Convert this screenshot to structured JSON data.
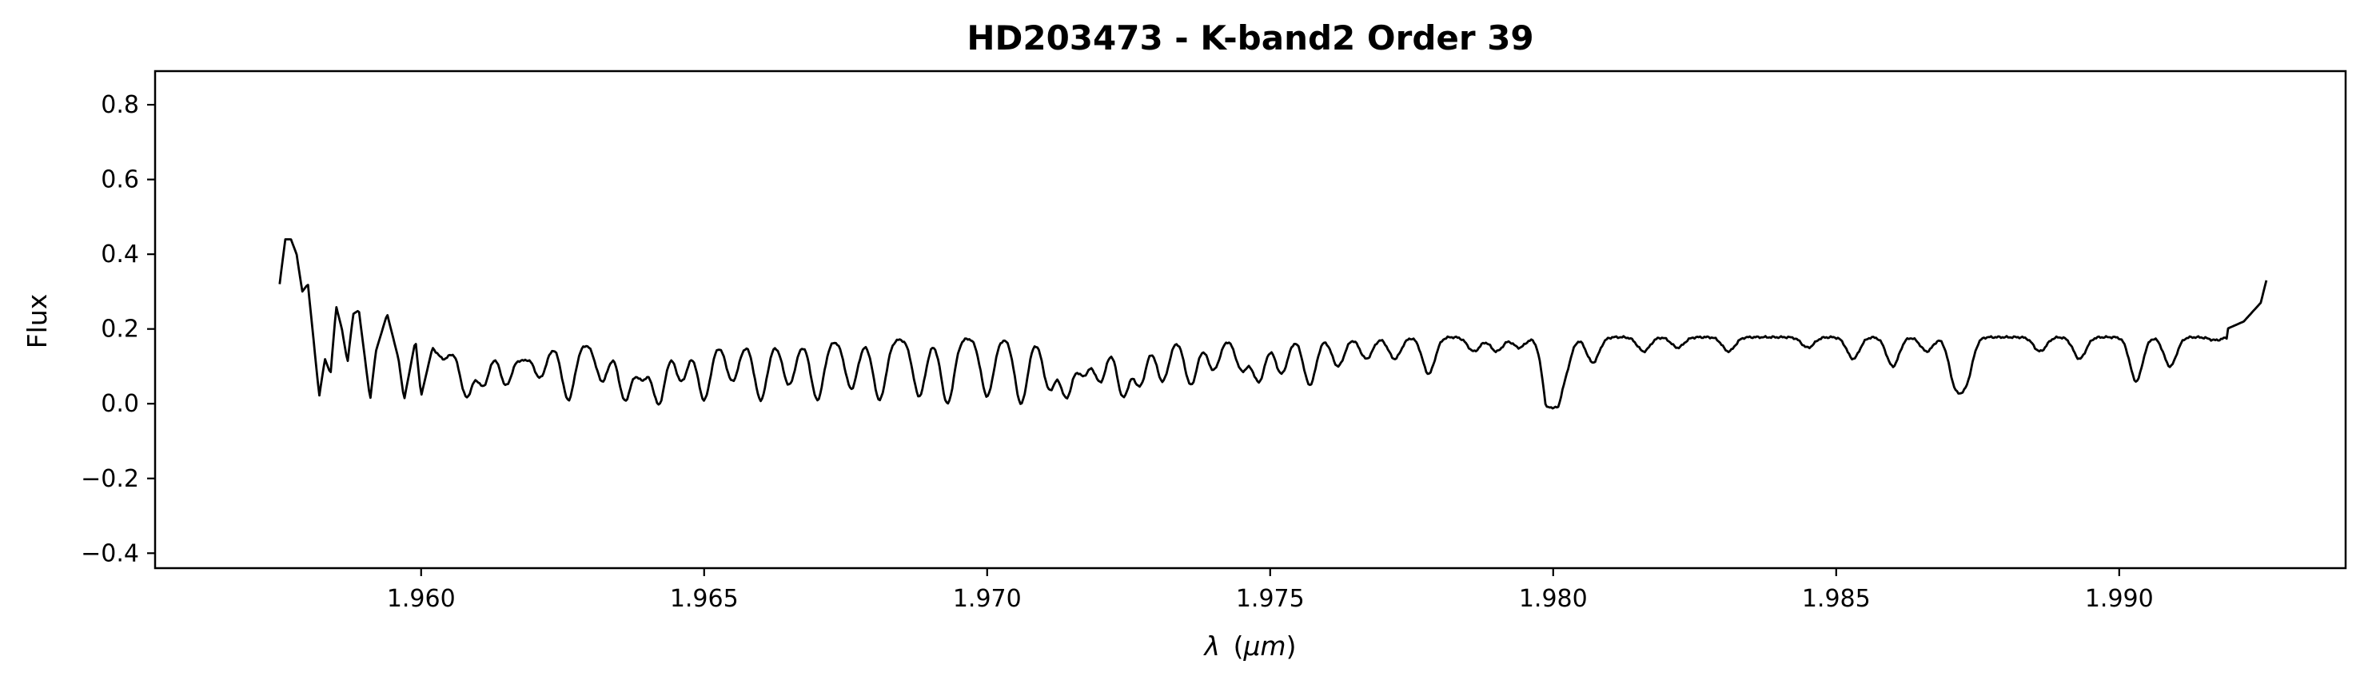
{
  "chart_data": {
    "type": "line",
    "title": "HD203473 - K-band2 Order 39",
    "xlabel": "λ (μm)",
    "xlabel_symbol": "λ",
    "xlabel_unit": "μm",
    "ylabel": "Flux",
    "xlim": [
      1.9553,
      1.994
    ],
    "ylim": [
      -0.44,
      0.89
    ],
    "xticks": [
      1.96,
      1.965,
      1.97,
      1.975,
      1.98,
      1.985,
      1.99
    ],
    "xtick_labels": [
      "1.960",
      "1.965",
      "1.970",
      "1.975",
      "1.980",
      "1.985",
      "1.990"
    ],
    "yticks": [
      -0.4,
      -0.2,
      0.0,
      0.2,
      0.4,
      0.6,
      0.8
    ],
    "ytick_labels": [
      "−0.4",
      "−0.2",
      "0.0",
      "0.2",
      "0.4",
      "0.6",
      "0.8"
    ],
    "grid": false,
    "line_color": "#000000",
    "series": [
      {
        "x_range": [
          1.9575,
          1.9926
        ],
        "continuum_start": 0.155,
        "continuum_end": 0.178,
        "onset": [
          [
            1.9575,
            0.32
          ],
          [
            1.9576,
            0.44
          ],
          [
            1.9577,
            0.44
          ],
          [
            1.9578,
            0.4
          ],
          [
            1.9579,
            0.3
          ],
          [
            1.958,
            0.32
          ],
          [
            1.9581,
            0.17
          ],
          [
            1.9582,
            0.02
          ],
          [
            1.9583,
            0.12
          ],
          [
            1.9584,
            0.08
          ],
          [
            1.9585,
            0.26
          ],
          [
            1.9586,
            0.2
          ],
          [
            1.9587,
            0.11
          ],
          [
            1.9588,
            0.24
          ],
          [
            1.9589,
            0.25
          ],
          [
            1.959,
            0.13
          ],
          [
            1.9591,
            0.01
          ],
          [
            1.9592,
            0.14
          ],
          [
            1.9594,
            0.24
          ],
          [
            1.9596,
            0.12
          ],
          [
            1.9597,
            0.01
          ],
          [
            1.9599,
            0.17
          ],
          [
            1.96,
            0.02
          ],
          [
            1.9602,
            0.15
          ]
        ],
        "absorption_lines": [
          [
            1.9604,
            0.12
          ],
          [
            1.9608,
            0.02
          ],
          [
            1.9611,
            0.05
          ],
          [
            1.9615,
            0.05
          ],
          [
            1.9618,
            0.12
          ],
          [
            1.9621,
            0.07
          ],
          [
            1.9626,
            0.01
          ],
          [
            1.9632,
            0.06
          ],
          [
            1.9636,
            0.01
          ],
          [
            1.9639,
            0.07
          ],
          [
            1.9642,
            0.0
          ],
          [
            1.9646,
            0.06
          ],
          [
            1.965,
            0.01
          ],
          [
            1.9655,
            0.06
          ],
          [
            1.966,
            0.01
          ],
          [
            1.9665,
            0.05
          ],
          [
            1.967,
            0.01
          ],
          [
            1.9676,
            0.04
          ],
          [
            1.9681,
            0.01
          ],
          [
            1.9688,
            0.02
          ],
          [
            1.9693,
            0.0
          ],
          [
            1.97,
            0.02
          ],
          [
            1.9706,
            0.0
          ],
          [
            1.9711,
            0.04
          ],
          [
            1.9714,
            0.02
          ],
          [
            1.9717,
            0.08
          ],
          [
            1.972,
            0.06
          ],
          [
            1.9724,
            0.02
          ],
          [
            1.9727,
            0.05
          ],
          [
            1.9731,
            0.06
          ],
          [
            1.9736,
            0.05
          ],
          [
            1.974,
            0.09
          ],
          [
            1.9745,
            0.09
          ],
          [
            1.9748,
            0.06
          ],
          [
            1.9752,
            0.08
          ],
          [
            1.9757,
            0.05
          ],
          [
            1.9762,
            0.1
          ],
          [
            1.9767,
            0.12
          ],
          [
            1.9772,
            0.12
          ],
          [
            1.9778,
            0.08
          ],
          [
            1.9786,
            0.14
          ],
          [
            1.979,
            0.14
          ],
          [
            1.9794,
            0.15
          ],
          [
            1.9799,
            0.07
          ],
          [
            1.98,
            0.02
          ],
          [
            1.9802,
            0.09
          ],
          [
            1.9807,
            0.11
          ],
          [
            1.9816,
            0.14
          ],
          [
            1.9822,
            0.15
          ],
          [
            1.9831,
            0.14
          ],
          [
            1.9845,
            0.15
          ],
          [
            1.9853,
            0.12
          ],
          [
            1.986,
            0.1
          ],
          [
            1.9866,
            0.14
          ],
          [
            1.9871,
            0.06
          ],
          [
            1.9873,
            0.07
          ],
          [
            1.9886,
            0.14
          ],
          [
            1.9893,
            0.12
          ],
          [
            1.9903,
            0.06
          ],
          [
            1.9909,
            0.1
          ],
          [
            1.9917,
            0.17
          ],
          [
            1.9922,
            0.19
          ]
        ],
        "tail": [
          [
            1.9919,
            0.2
          ],
          [
            1.9922,
            0.22
          ],
          [
            1.9925,
            0.27
          ],
          [
            1.9926,
            0.33
          ]
        ]
      }
    ]
  }
}
